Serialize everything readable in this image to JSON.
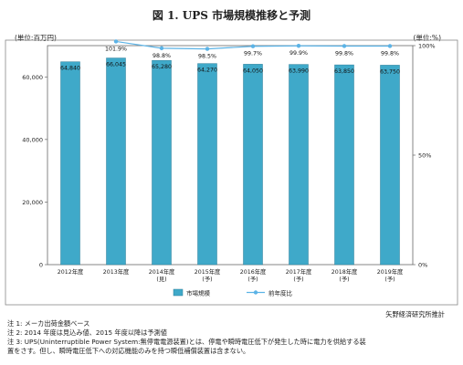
{
  "title": "図 1. UPS 市場規模推移と予測",
  "unit_left": "(単位:百万円)",
  "unit_right": "(単位:%)",
  "source": "矢野経済研究所推計",
  "notes": [
    "注 1: メーカ出荷金額ベース",
    "注 2: 2014 年度は見込み値、2015 年度以降は予測値",
    "注 3: UPS(Uninterruptible Power System:無停電電源装置)とは、停電や瞬時電圧低下が発生した時に電力を供給する装",
    "置をさす。但し、瞬時電圧低下への対応機能のみを持つ瞬低補償装置は含まない。"
  ],
  "chart_data": {
    "type": "bar",
    "categories": [
      [
        "2012年度"
      ],
      [
        "2013年度"
      ],
      [
        "2014年度",
        "(見)"
      ],
      [
        "2015年度",
        "(予)"
      ],
      [
        "2016年度",
        "(予)"
      ],
      [
        "2017年度",
        "(予)"
      ],
      [
        "2018年度",
        "(予)"
      ],
      [
        "2019年度",
        "(予)"
      ]
    ],
    "series": [
      {
        "name": "市場規模",
        "type": "bar",
        "axis": "left",
        "color": "#3fa9c9",
        "values": [
          64840,
          66045,
          65280,
          64270,
          64050,
          63990,
          63850,
          63750
        ],
        "labels": [
          "64,840",
          "66,045",
          "65,280",
          "64,270",
          "64,050",
          "63,990",
          "63,850",
          "63,750"
        ]
      },
      {
        "name": "前年度比",
        "type": "line",
        "axis": "right",
        "color": "#5bb3e6",
        "values": [
          null,
          101.9,
          98.8,
          98.5,
          99.7,
          99.9,
          99.8,
          99.8
        ],
        "labels": [
          "",
          "101.9%",
          "98.8%",
          "98.5%",
          "99.7%",
          "99.9%",
          "99.8%",
          "99.8%"
        ]
      }
    ],
    "y_left": {
      "min": 0,
      "max": 70000,
      "ticks": [
        0,
        20000,
        40000,
        60000
      ],
      "tick_labels": [
        "0",
        "20,000",
        "40,000",
        "60,000"
      ]
    },
    "y_right": {
      "min": 0,
      "max": 100,
      "ticks": [
        0,
        50,
        100
      ],
      "tick_labels": [
        "0%",
        "50%",
        "100%"
      ]
    },
    "grid": false,
    "legend_position": "bottom"
  }
}
